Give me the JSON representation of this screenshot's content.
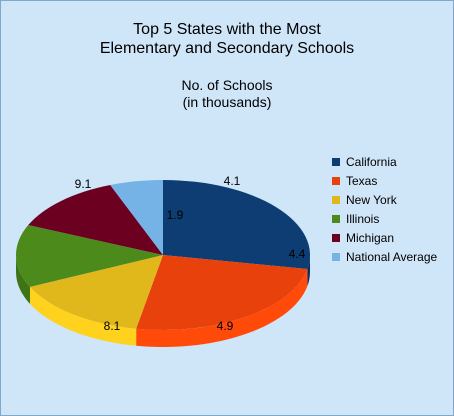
{
  "chart_data": {
    "type": "pie",
    "title": [
      "Top 5 States with the Most",
      "Elementary and Secondary Schools"
    ],
    "subtitle": [
      "No. of Schools",
      "(in thousands)"
    ],
    "legend_position": "right",
    "slices": [
      {
        "name": "California",
        "value": 9.1,
        "label": "9.1",
        "color": "#0d3d72",
        "side": "#0a2f58"
      },
      {
        "name": "Texas",
        "value": 8.1,
        "label": "8.1",
        "color": "#e8410b",
        "side": "#ff4a0a"
      },
      {
        "name": "New York",
        "value": 4.9,
        "label": "4.9",
        "color": "#e0b81c",
        "side": "#ffd21e"
      },
      {
        "name": "Illinois",
        "value": 4.4,
        "label": "4.4",
        "color": "#4c8a1c",
        "side": "#3f7416"
      },
      {
        "name": "Michigan",
        "value": 4.1,
        "label": "4.1",
        "color": "#6c0020",
        "side": "#55001a"
      },
      {
        "name": "National Average",
        "value": 1.9,
        "label": "1.9",
        "color": "#75b2e6",
        "side": "#5d98cc"
      }
    ]
  }
}
